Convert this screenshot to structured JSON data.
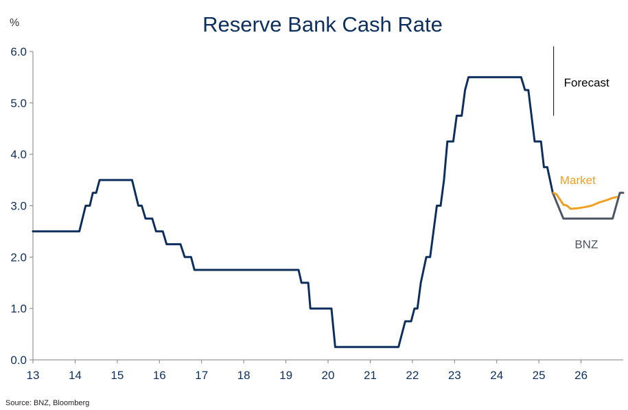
{
  "chart_data": {
    "type": "line",
    "title": "Reserve Bank Cash Rate",
    "ylabel": "%",
    "xlim": [
      13,
      27
    ],
    "ylim": [
      0,
      6
    ],
    "x_ticks": [
      13,
      14,
      15,
      16,
      17,
      18,
      19,
      20,
      21,
      22,
      23,
      24,
      25,
      26
    ],
    "x_tick_labels": [
      "13",
      "14",
      "15",
      "16",
      "17",
      "18",
      "19",
      "20",
      "21",
      "22",
      "23",
      "24",
      "25",
      "26"
    ],
    "y_ticks": [
      0,
      1,
      2,
      3,
      4,
      5,
      6
    ],
    "y_tick_labels": [
      "0.0",
      "1.0",
      "2.0",
      "3.0",
      "4.0",
      "5.0",
      "6.0"
    ],
    "grid": false,
    "series": [
      {
        "name": "",
        "color": "#0d2f5e",
        "points": [
          [
            13.0,
            2.5
          ],
          [
            14.1,
            2.5
          ],
          [
            14.25,
            3.0
          ],
          [
            14.35,
            3.0
          ],
          [
            14.42,
            3.25
          ],
          [
            14.5,
            3.25
          ],
          [
            14.58,
            3.5
          ],
          [
            15.35,
            3.5
          ],
          [
            15.5,
            3.0
          ],
          [
            15.58,
            3.0
          ],
          [
            15.67,
            2.75
          ],
          [
            15.83,
            2.75
          ],
          [
            15.92,
            2.5
          ],
          [
            16.08,
            2.5
          ],
          [
            16.17,
            2.25
          ],
          [
            16.5,
            2.25
          ],
          [
            16.6,
            2.0
          ],
          [
            16.75,
            2.0
          ],
          [
            16.83,
            1.75
          ],
          [
            19.3,
            1.75
          ],
          [
            19.37,
            1.5
          ],
          [
            19.53,
            1.5
          ],
          [
            19.58,
            1.0
          ],
          [
            20.08,
            1.0
          ],
          [
            20.17,
            0.25
          ],
          [
            21.67,
            0.25
          ],
          [
            21.83,
            0.75
          ],
          [
            21.97,
            0.75
          ],
          [
            22.05,
            1.0
          ],
          [
            22.12,
            1.0
          ],
          [
            22.2,
            1.5
          ],
          [
            22.33,
            2.0
          ],
          [
            22.42,
            2.0
          ],
          [
            22.5,
            2.5
          ],
          [
            22.58,
            3.0
          ],
          [
            22.67,
            3.0
          ],
          [
            22.75,
            3.5
          ],
          [
            22.83,
            4.25
          ],
          [
            22.97,
            4.25
          ],
          [
            23.05,
            4.75
          ],
          [
            23.17,
            4.75
          ],
          [
            23.25,
            5.25
          ],
          [
            23.33,
            5.5
          ],
          [
            24.58,
            5.5
          ],
          [
            24.67,
            5.25
          ],
          [
            24.75,
            5.25
          ],
          [
            24.9,
            4.25
          ],
          [
            25.05,
            4.25
          ],
          [
            25.12,
            3.75
          ],
          [
            25.2,
            3.75
          ],
          [
            25.33,
            3.25
          ]
        ]
      },
      {
        "name": "BNZ",
        "color": "#4b5563",
        "points": [
          [
            25.33,
            3.25
          ],
          [
            25.58,
            2.75
          ],
          [
            26.75,
            2.75
          ],
          [
            26.92,
            3.25
          ],
          [
            27.0,
            3.25
          ]
        ]
      },
      {
        "name": "Market",
        "color": "#f0a020",
        "points": [
          [
            25.35,
            3.25
          ],
          [
            25.42,
            3.22
          ],
          [
            25.5,
            3.12
          ],
          [
            25.58,
            3.02
          ],
          [
            25.67,
            3.0
          ],
          [
            25.75,
            2.94
          ],
          [
            25.92,
            2.95
          ],
          [
            26.08,
            2.97
          ],
          [
            26.25,
            3.0
          ],
          [
            26.42,
            3.06
          ],
          [
            26.58,
            3.1
          ],
          [
            26.75,
            3.15
          ],
          [
            26.85,
            3.17
          ]
        ]
      }
    ],
    "annotations": [
      {
        "text": "Forecast",
        "color": "#000000",
        "x": 25.35,
        "y": 5.4,
        "divider_x": 25.35,
        "divider_y": [
          4.75,
          6.1
        ]
      },
      {
        "text": "Market",
        "color": "#f0a020",
        "x": 25.5,
        "y": 3.5
      },
      {
        "text": "BNZ",
        "color": "#4b5563",
        "x": 25.85,
        "y": 2.25
      }
    ],
    "source": "Source: BNZ, Bloomberg"
  }
}
